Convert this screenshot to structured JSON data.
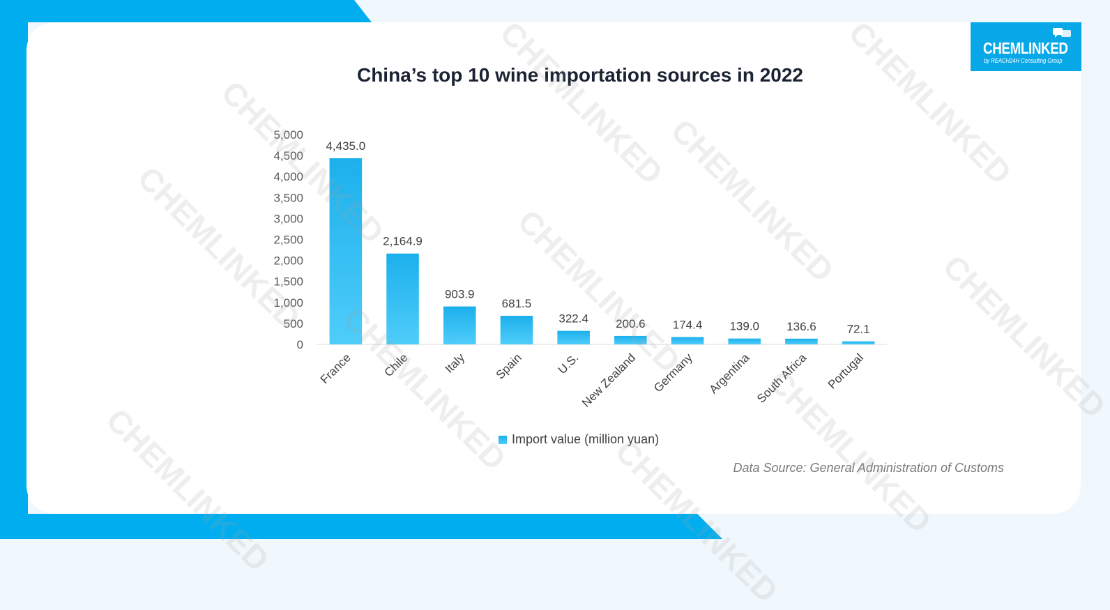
{
  "title": "China’s top 10 wine importation sources in 2022",
  "logo": {
    "name": "CHEMLINKED",
    "subtitle": "by REACH24H Consulting Group"
  },
  "watermark_text": "CHEMLINKED",
  "legend_label": "Import value (million yuan)",
  "source": "Data Source: General Administration of Customs",
  "colors": {
    "accent": "#00aeef",
    "bar_top": "#1cb0ec",
    "bar_bottom": "#4fcdfa",
    "title": "#1b2333"
  },
  "chart_data": {
    "type": "bar",
    "categories": [
      "France",
      "Chile",
      "Italy",
      "Spain",
      "U.S.",
      "New Zealand",
      "Germany",
      "Argentina",
      "South Africa",
      "Portugal"
    ],
    "series": [
      {
        "name": "Import value (million yuan)",
        "values": [
          4435.0,
          2164.9,
          903.9,
          681.5,
          322.4,
          200.6,
          174.4,
          139.0,
          136.6,
          72.1
        ]
      }
    ],
    "value_labels": [
      "4,435.0",
      "2,164.9",
      "903.9",
      "681.5",
      "322.4",
      "200.6",
      "174.4",
      "139.0",
      "136.6",
      "72.1"
    ],
    "y_ticks": [
      "0",
      "500",
      "1,000",
      "1,500",
      "2,000",
      "2,500",
      "3,000",
      "3,500",
      "4,000",
      "4,500",
      "5,000"
    ],
    "ylim": [
      0,
      5000
    ],
    "grid": false,
    "legend": "bottom"
  }
}
